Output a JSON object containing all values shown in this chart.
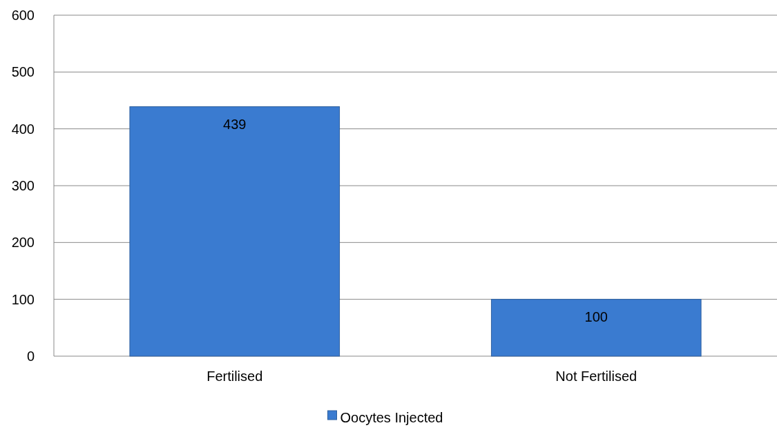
{
  "chart_data": {
    "type": "bar",
    "categories": [
      "Fertilised",
      "Not Fertilised"
    ],
    "series": [
      {
        "name": "Oocytes Injected",
        "color": "#3a7bd0",
        "values": [
          439,
          100
        ]
      }
    ],
    "ylim": [
      0,
      600
    ],
    "yticks": [
      0,
      100,
      200,
      300,
      400,
      500,
      600
    ],
    "grid": "y",
    "legend": "bottom",
    "data_labels": true
  }
}
